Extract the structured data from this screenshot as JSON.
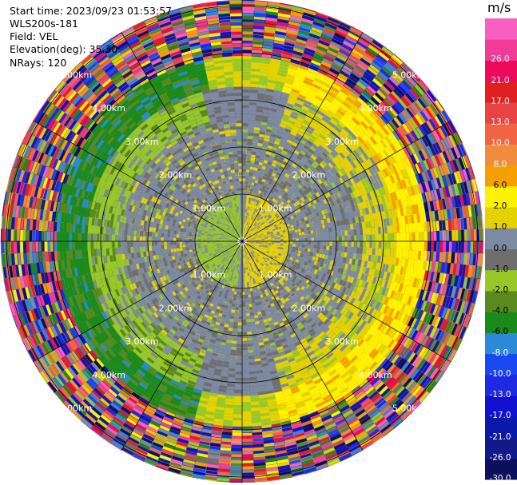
{
  "header": {
    "start_time": "Start time: 2023/09/23 01:53:57",
    "instrument": "WLS200s-181",
    "field": "Field: VEL",
    "elevation": "Elevation(deg): 35.30",
    "nrays": "NRays: 120"
  },
  "range_rings": [
    {
      "range": 1,
      "label": "1.00km"
    },
    {
      "range": 2,
      "label": "2.00km"
    },
    {
      "range": 3,
      "label": "3.00km"
    },
    {
      "range": 4,
      "label": "4.00km"
    },
    {
      "range": 5,
      "label": "5.00km"
    }
  ],
  "colorbar": {
    "unit": "m/s",
    "bins": [
      {
        "label": "-30.0",
        "color": "#0b0f5c"
      },
      {
        "label": "-26.0",
        "color": "#121a8a"
      },
      {
        "label": "-21.0",
        "color": "#0a1aa8"
      },
      {
        "label": "-17.0",
        "color": "#1010d0"
      },
      {
        "label": "-13.0",
        "color": "#1f2ae0"
      },
      {
        "label": "-10.0",
        "color": "#1848f0"
      },
      {
        "label": "-8.0",
        "color": "#2a8ad8"
      },
      {
        "label": "-6.0",
        "color": "#1a8a1a"
      },
      {
        "label": "-4.0",
        "color": "#5a8a1e"
      },
      {
        "label": "-2.0",
        "color": "#98c828"
      },
      {
        "label": "-1.0",
        "color": "#6e6e6e"
      },
      {
        "label": "0.0",
        "color": "#7d8aa3"
      },
      {
        "label": "1.0",
        "color": "#e6d200"
      },
      {
        "label": "2.0",
        "color": "#fff200"
      },
      {
        "label": "6.0",
        "color": "#f5a000"
      },
      {
        "label": "8.0",
        "color": "#f08c3c"
      },
      {
        "label": "10.0",
        "color": "#f06444"
      },
      {
        "label": "13.0",
        "color": "#e84444"
      },
      {
        "label": "17.0",
        "color": "#e02020"
      },
      {
        "label": "21.0",
        "color": "#ee0a5a"
      },
      {
        "label": "26.0",
        "color": "#f03c96"
      },
      {
        "label": "",
        "color": "#f860c0"
      }
    ]
  }
}
